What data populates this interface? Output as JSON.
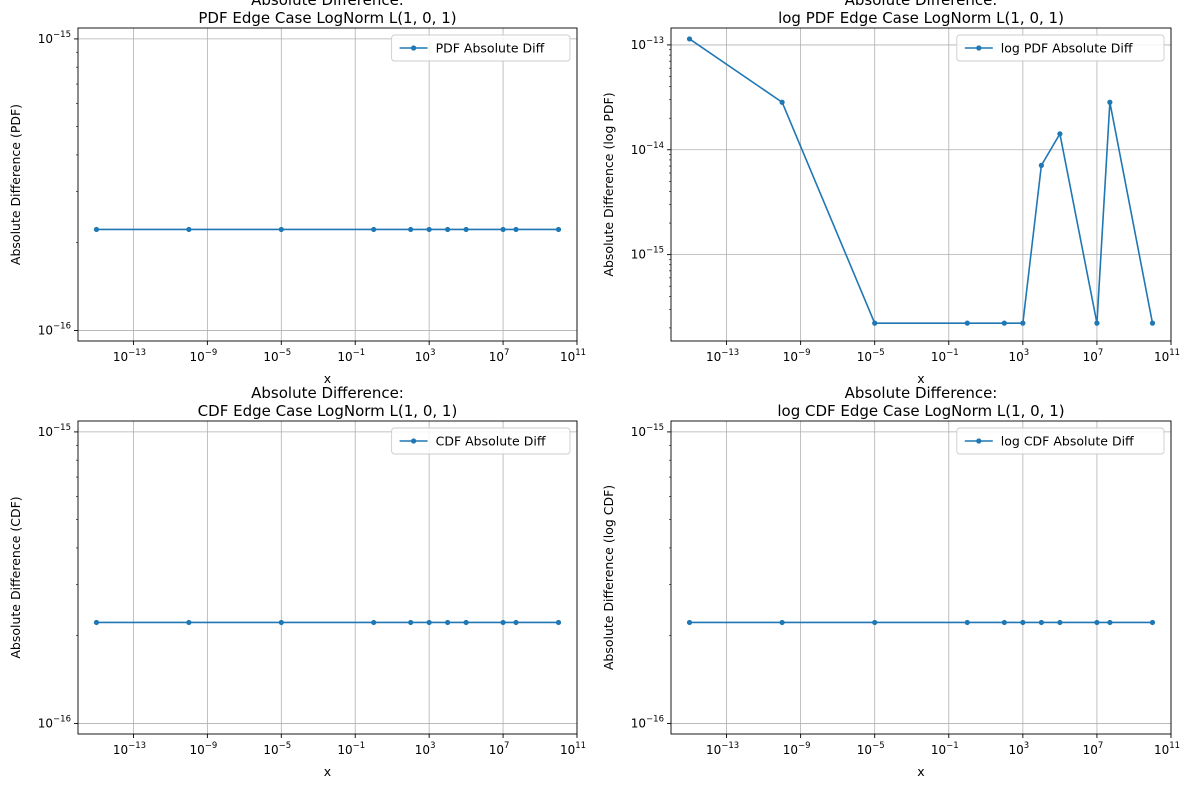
{
  "figure": {
    "line_color": "#1f77b4",
    "grid_color": "#b0b0b0",
    "frame_color": "#000000"
  },
  "chart_data": [
    {
      "type": "line",
      "title_lines": [
        "Absolute Difference:",
        "PDF Edge Case LogNorm L(1, 0, 1)"
      ],
      "xlabel": "x",
      "ylabel": "Absolute Difference (PDF)",
      "xscale": "log",
      "yscale": "log",
      "xlim": [
        1e-16,
        100000000000.0
      ],
      "ylim": [
        9.2e-17,
        1.09e-15
      ],
      "xticks": [
        {
          "value": 1e-13,
          "label": "10",
          "exp": "−13"
        },
        {
          "value": 1e-09,
          "label": "10",
          "exp": "−9"
        },
        {
          "value": 1e-05,
          "label": "10",
          "exp": "−5"
        },
        {
          "value": 0.1,
          "label": "10",
          "exp": "−1"
        },
        {
          "value": 1000,
          "label": "10",
          "exp": "3"
        },
        {
          "value": 10000000.0,
          "label": "10",
          "exp": "7"
        },
        {
          "value": 100000000000.0,
          "label": "10",
          "exp": "11"
        }
      ],
      "yticks": [
        {
          "value": 1e-16,
          "label": "10",
          "exp": "−16"
        },
        {
          "value": 1e-15,
          "label": "10",
          "exp": "−15"
        }
      ],
      "grid": true,
      "legend": "top-right",
      "series": [
        {
          "name": "PDF Absolute Diff",
          "x": [
            1e-15,
            1e-10,
            1e-05,
            1,
            100,
            1000,
            10000,
            100000,
            10000000.0,
            50000000.0,
            10000000000.0
          ],
          "y": [
            2.22e-16,
            2.22e-16,
            2.22e-16,
            2.22e-16,
            2.22e-16,
            2.22e-16,
            2.22e-16,
            2.22e-16,
            2.22e-16,
            2.22e-16,
            2.22e-16
          ]
        }
      ]
    },
    {
      "type": "line",
      "title_lines": [
        "Absolute Difference:",
        "log PDF Edge Case LogNorm L(1, 0, 1)"
      ],
      "xlabel": "x",
      "ylabel": "Absolute Difference (log PDF)",
      "xscale": "log",
      "yscale": "log",
      "xlim": [
        1e-16,
        100000000000.0
      ],
      "ylim": [
        1.5e-16,
        1.45e-13
      ],
      "xticks": [
        {
          "value": 1e-13,
          "label": "10",
          "exp": "−13"
        },
        {
          "value": 1e-09,
          "label": "10",
          "exp": "−9"
        },
        {
          "value": 1e-05,
          "label": "10",
          "exp": "−5"
        },
        {
          "value": 0.1,
          "label": "10",
          "exp": "−1"
        },
        {
          "value": 1000,
          "label": "10",
          "exp": "3"
        },
        {
          "value": 10000000.0,
          "label": "10",
          "exp": "7"
        },
        {
          "value": 100000000000.0,
          "label": "10",
          "exp": "11"
        }
      ],
      "yticks": [
        {
          "value": 1e-15,
          "label": "10",
          "exp": "−15"
        },
        {
          "value": 1e-14,
          "label": "10",
          "exp": "−14"
        },
        {
          "value": 1e-13,
          "label": "10",
          "exp": "−13"
        }
      ],
      "grid": true,
      "legend": "top-right",
      "series": [
        {
          "name": "log PDF Absolute Diff",
          "x": [
            1e-15,
            1e-10,
            1e-05,
            1,
            100,
            1000,
            10000,
            100000,
            10000000.0,
            50000000.0,
            10000000000.0
          ],
          "y": [
            1.14e-13,
            2.84e-14,
            2.22e-16,
            2.22e-16,
            2.22e-16,
            2.22e-16,
            7.1e-15,
            1.42e-14,
            2.22e-16,
            2.84e-14,
            2.22e-16
          ]
        }
      ]
    },
    {
      "type": "line",
      "title_lines": [
        "Absolute Difference:",
        "CDF Edge Case LogNorm L(1, 0, 1)"
      ],
      "xlabel": "x",
      "ylabel": "Absolute Difference (CDF)",
      "xscale": "log",
      "yscale": "log",
      "xlim": [
        1e-16,
        100000000000.0
      ],
      "ylim": [
        9.2e-17,
        1.09e-15
      ],
      "xticks": [
        {
          "value": 1e-13,
          "label": "10",
          "exp": "−13"
        },
        {
          "value": 1e-09,
          "label": "10",
          "exp": "−9"
        },
        {
          "value": 1e-05,
          "label": "10",
          "exp": "−5"
        },
        {
          "value": 0.1,
          "label": "10",
          "exp": "−1"
        },
        {
          "value": 1000,
          "label": "10",
          "exp": "3"
        },
        {
          "value": 10000000.0,
          "label": "10",
          "exp": "7"
        },
        {
          "value": 100000000000.0,
          "label": "10",
          "exp": "11"
        }
      ],
      "yticks": [
        {
          "value": 1e-16,
          "label": "10",
          "exp": "−16"
        },
        {
          "value": 1e-15,
          "label": "10",
          "exp": "−15"
        }
      ],
      "grid": true,
      "legend": "top-right",
      "series": [
        {
          "name": "CDF Absolute Diff",
          "x": [
            1e-15,
            1e-10,
            1e-05,
            1,
            100,
            1000,
            10000,
            100000,
            10000000.0,
            50000000.0,
            10000000000.0
          ],
          "y": [
            2.22e-16,
            2.22e-16,
            2.22e-16,
            2.22e-16,
            2.22e-16,
            2.22e-16,
            2.22e-16,
            2.22e-16,
            2.22e-16,
            2.22e-16,
            2.22e-16
          ]
        }
      ]
    },
    {
      "type": "line",
      "title_lines": [
        "Absolute Difference:",
        "log CDF Edge Case LogNorm L(1, 0, 1)"
      ],
      "xlabel": "x",
      "ylabel": "Absolute Difference (log CDF)",
      "xscale": "log",
      "yscale": "log",
      "xlim": [
        1e-16,
        100000000000.0
      ],
      "ylim": [
        9.2e-17,
        1.09e-15
      ],
      "xticks": [
        {
          "value": 1e-13,
          "label": "10",
          "exp": "−13"
        },
        {
          "value": 1e-09,
          "label": "10",
          "exp": "−9"
        },
        {
          "value": 1e-05,
          "label": "10",
          "exp": "−5"
        },
        {
          "value": 0.1,
          "label": "10",
          "exp": "−1"
        },
        {
          "value": 1000,
          "label": "10",
          "exp": "3"
        },
        {
          "value": 10000000.0,
          "label": "10",
          "exp": "7"
        },
        {
          "value": 100000000000.0,
          "label": "10",
          "exp": "11"
        }
      ],
      "yticks": [
        {
          "value": 1e-16,
          "label": "10",
          "exp": "−16"
        },
        {
          "value": 1e-15,
          "label": "10",
          "exp": "−15"
        }
      ],
      "grid": true,
      "legend": "top-right",
      "series": [
        {
          "name": "log CDF Absolute Diff",
          "x": [
            1e-15,
            1e-10,
            1e-05,
            1,
            100,
            1000,
            10000,
            100000,
            10000000.0,
            50000000.0,
            10000000000.0
          ],
          "y": [
            2.22e-16,
            2.22e-16,
            2.22e-16,
            2.22e-16,
            2.22e-16,
            2.22e-16,
            2.22e-16,
            2.22e-16,
            2.22e-16,
            2.22e-16,
            2.22e-16
          ]
        }
      ]
    }
  ]
}
